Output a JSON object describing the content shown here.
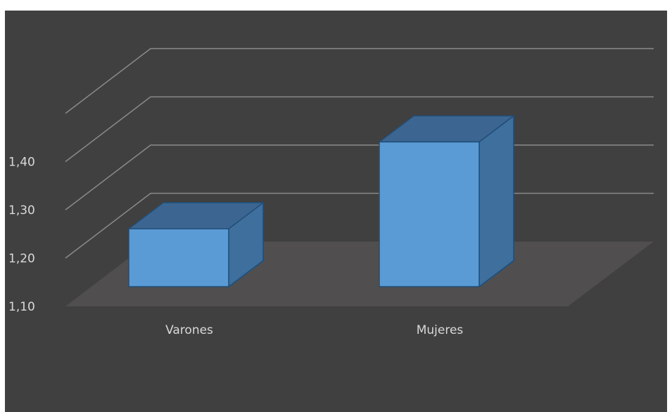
{
  "chart_data": {
    "type": "bar",
    "style": "3d-column",
    "title": "",
    "xlabel": "",
    "ylabel": "",
    "categories": [
      "Varones",
      "Mujeres"
    ],
    "values": [
      1.22,
      1.4
    ],
    "y_ticks": [
      "1,10",
      "1,20",
      "1,30",
      "1,40"
    ],
    "y_tick_values": [
      1.1,
      1.2,
      1.3,
      1.4
    ],
    "ylim": [
      1.1,
      1.5
    ],
    "grid": true,
    "legend": "none",
    "colors": {
      "background": "#404040",
      "floor": "#504e4f",
      "gridline": "#8a8a8a",
      "bar_front": "#5b9bd5",
      "bar_top": "#3c6591",
      "bar_side": "#3f6f9d",
      "bar_edge": "#1f4e79",
      "text": "#d9d9d9"
    }
  }
}
